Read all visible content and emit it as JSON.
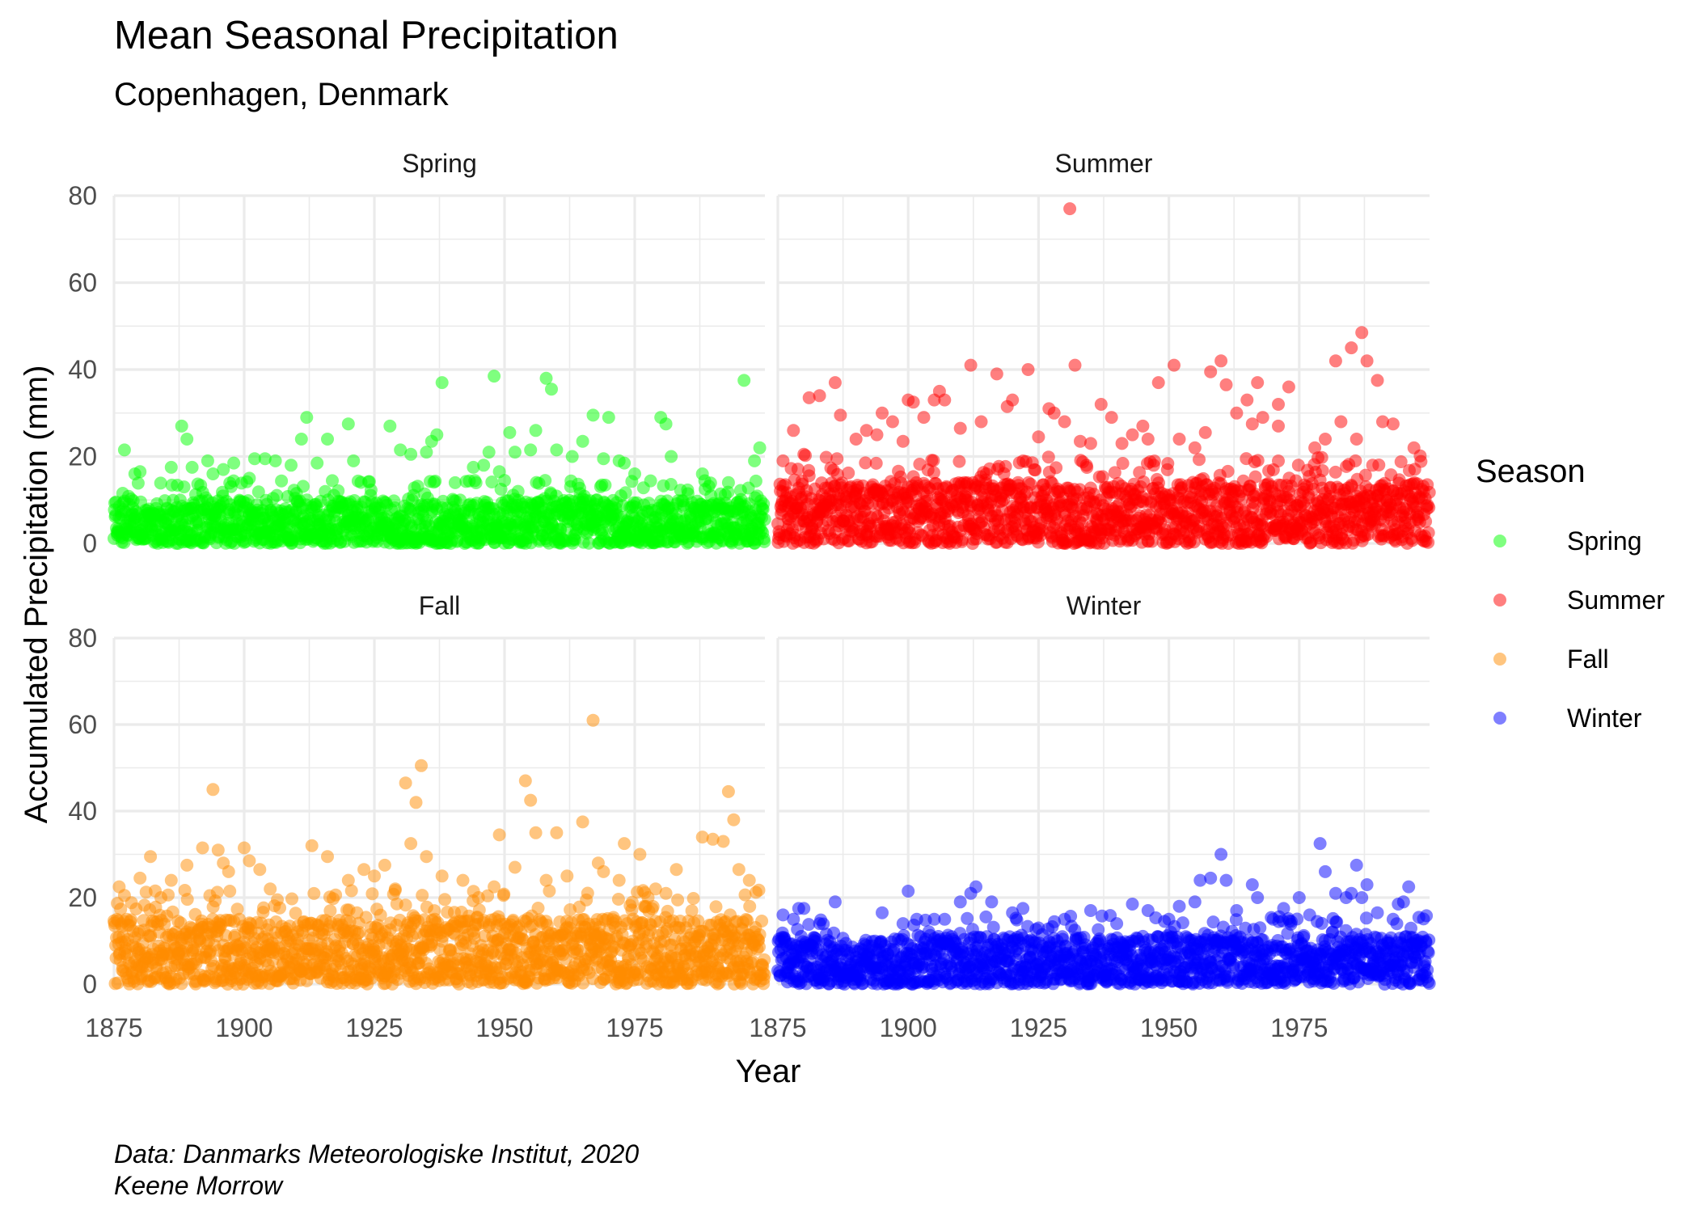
{
  "chart_data": {
    "type": "scatter",
    "title": "Mean Seasonal Precipitation",
    "subtitle": "Copenhagen, Denmark",
    "xlabel": "Year",
    "ylabel": "Accumulated Precipitation (mm)",
    "caption_lines": [
      "Data: Danmarks Meteorologiske Institut, 2020",
      "Keene Morrow"
    ],
    "xlim": [
      1875,
      2000
    ],
    "ylim": [
      0,
      80
    ],
    "x_ticks": [
      1875,
      1900,
      1925,
      1950,
      1975
    ],
    "y_ticks": [
      0,
      20,
      40,
      60,
      80
    ],
    "grid": true,
    "legend": {
      "title": "Season",
      "position": "right"
    },
    "point_alpha": 0.5,
    "series": [
      {
        "name": "Spring",
        "color": "#00ff00",
        "baseline_max": 10,
        "outliers": [
          [
            1877,
            21.5
          ],
          [
            1879,
            16
          ],
          [
            1880,
            16.5
          ],
          [
            1886,
            17.5
          ],
          [
            1888,
            27
          ],
          [
            1889,
            24
          ],
          [
            1890,
            17.5
          ],
          [
            1893,
            19
          ],
          [
            1894,
            16
          ],
          [
            1896,
            17
          ],
          [
            1898,
            18.5
          ],
          [
            1901,
            15
          ],
          [
            1902,
            19.5
          ],
          [
            1904,
            19.5
          ],
          [
            1906,
            19
          ],
          [
            1909,
            18
          ],
          [
            1911,
            24
          ],
          [
            1912,
            29
          ],
          [
            1914,
            18.5
          ],
          [
            1916,
            24
          ],
          [
            1920,
            27.5
          ],
          [
            1921,
            19
          ],
          [
            1928,
            27
          ],
          [
            1930,
            21.5
          ],
          [
            1932,
            20.5
          ],
          [
            1935,
            21
          ],
          [
            1936,
            23.5
          ],
          [
            1937,
            25
          ],
          [
            1938,
            37
          ],
          [
            1944,
            17.5
          ],
          [
            1946,
            18
          ],
          [
            1947,
            21
          ],
          [
            1948,
            38.5
          ],
          [
            1949,
            16.5
          ],
          [
            1950,
            14.5
          ],
          [
            1951,
            25.5
          ],
          [
            1952,
            21
          ],
          [
            1955,
            21.5
          ],
          [
            1956,
            26
          ],
          [
            1958,
            38
          ],
          [
            1959,
            35.5
          ],
          [
            1960,
            21.5
          ],
          [
            1963,
            20
          ],
          [
            1965,
            23.5
          ],
          [
            1967,
            29.5
          ],
          [
            1969,
            19.5
          ],
          [
            1970,
            29
          ],
          [
            1972,
            19
          ],
          [
            1973,
            18.5
          ],
          [
            1975,
            16
          ],
          [
            1980,
            29
          ],
          [
            1981,
            27.5
          ],
          [
            1982,
            20
          ],
          [
            1988,
            16
          ],
          [
            1993,
            14
          ],
          [
            1996,
            37.5
          ],
          [
            1998,
            19
          ],
          [
            1999,
            22
          ]
        ]
      },
      {
        "name": "Summer",
        "color": "#ff0000",
        "baseline_max": 14,
        "outliers": [
          [
            1876,
            19
          ],
          [
            1878,
            26
          ],
          [
            1880,
            20.5
          ],
          [
            1881,
            33.5
          ],
          [
            1883,
            34
          ],
          [
            1886,
            37
          ],
          [
            1887,
            29.5
          ],
          [
            1890,
            24
          ],
          [
            1892,
            26
          ],
          [
            1894,
            25
          ],
          [
            1895,
            30
          ],
          [
            1897,
            28
          ],
          [
            1899,
            23.5
          ],
          [
            1900,
            33
          ],
          [
            1901,
            32.5
          ],
          [
            1903,
            29
          ],
          [
            1905,
            33
          ],
          [
            1906,
            35
          ],
          [
            1907,
            33
          ],
          [
            1910,
            26.5
          ],
          [
            1912,
            41
          ],
          [
            1914,
            28
          ],
          [
            1917,
            39
          ],
          [
            1919,
            31.5
          ],
          [
            1920,
            33
          ],
          [
            1923,
            40
          ],
          [
            1925,
            24.5
          ],
          [
            1927,
            31
          ],
          [
            1928,
            30
          ],
          [
            1930,
            28
          ],
          [
            1931,
            77
          ],
          [
            1932,
            41
          ],
          [
            1933,
            23.5
          ],
          [
            1935,
            23
          ],
          [
            1937,
            32
          ],
          [
            1939,
            29
          ],
          [
            1941,
            23
          ],
          [
            1943,
            25
          ],
          [
            1945,
            27
          ],
          [
            1946,
            24
          ],
          [
            1948,
            37
          ],
          [
            1951,
            41
          ],
          [
            1952,
            24
          ],
          [
            1955,
            22
          ],
          [
            1957,
            25.5
          ],
          [
            1958,
            39.5
          ],
          [
            1960,
            42
          ],
          [
            1961,
            36.5
          ],
          [
            1963,
            30
          ],
          [
            1965,
            33
          ],
          [
            1966,
            27.5
          ],
          [
            1967,
            37
          ],
          [
            1968,
            29
          ],
          [
            1971,
            27
          ],
          [
            1971,
            32
          ],
          [
            1973,
            36
          ],
          [
            1978,
            22
          ],
          [
            1980,
            24
          ],
          [
            1982,
            42
          ],
          [
            1983,
            28
          ],
          [
            1985,
            45
          ],
          [
            1986,
            24
          ],
          [
            1987,
            48.5
          ],
          [
            1988,
            42
          ],
          [
            1990,
            37.5
          ],
          [
            1991,
            28
          ],
          [
            1993,
            27.5
          ],
          [
            1997,
            22
          ]
        ]
      },
      {
        "name": "Fall",
        "color": "#ff8c00",
        "baseline_max": 15,
        "outliers": [
          [
            1876,
            22.5
          ],
          [
            1877,
            20.5
          ],
          [
            1880,
            24.5
          ],
          [
            1882,
            29.5
          ],
          [
            1884,
            20
          ],
          [
            1886,
            24
          ],
          [
            1889,
            27.5
          ],
          [
            1892,
            31.5
          ],
          [
            1894,
            45
          ],
          [
            1895,
            31
          ],
          [
            1896,
            28
          ],
          [
            1897,
            26
          ],
          [
            1900,
            31.5
          ],
          [
            1901,
            28.5
          ],
          [
            1903,
            26.5
          ],
          [
            1905,
            22
          ],
          [
            1913,
            32
          ],
          [
            1916,
            29.5
          ],
          [
            1920,
            24
          ],
          [
            1923,
            26.5
          ],
          [
            1925,
            25
          ],
          [
            1927,
            27.5
          ],
          [
            1929,
            22
          ],
          [
            1931,
            46.5
          ],
          [
            1932,
            32.5
          ],
          [
            1933,
            42
          ],
          [
            1934,
            50.5
          ],
          [
            1935,
            29.5
          ],
          [
            1938,
            25
          ],
          [
            1942,
            24
          ],
          [
            1945,
            20
          ],
          [
            1948,
            22.5
          ],
          [
            1949,
            34.5
          ],
          [
            1952,
            27
          ],
          [
            1954,
            47
          ],
          [
            1955,
            42.5
          ],
          [
            1956,
            35
          ],
          [
            1958,
            24
          ],
          [
            1960,
            35
          ],
          [
            1962,
            25
          ],
          [
            1965,
            37.5
          ],
          [
            1967,
            61
          ],
          [
            1968,
            28
          ],
          [
            1969,
            26
          ],
          [
            1972,
            24
          ],
          [
            1973,
            32.5
          ],
          [
            1976,
            30
          ],
          [
            1979,
            22
          ],
          [
            1981,
            21
          ],
          [
            1983,
            26.5
          ],
          [
            1988,
            34
          ],
          [
            1990,
            33.5
          ],
          [
            1992,
            33
          ],
          [
            1993,
            44.5
          ],
          [
            1994,
            38
          ],
          [
            1995,
            26.5
          ],
          [
            1997,
            24
          ]
        ]
      },
      {
        "name": "Winter",
        "color": "#0000ff",
        "baseline_max": 11,
        "outliers": [
          [
            1876,
            16
          ],
          [
            1878,
            15
          ],
          [
            1879,
            17.5
          ],
          [
            1880,
            17.5
          ],
          [
            1883,
            14
          ],
          [
            1886,
            19
          ],
          [
            1895,
            16.5
          ],
          [
            1899,
            14
          ],
          [
            1900,
            21.5
          ],
          [
            1905,
            15
          ],
          [
            1907,
            15
          ],
          [
            1910,
            19
          ],
          [
            1912,
            21
          ],
          [
            1913,
            22.5
          ],
          [
            1916,
            19
          ],
          [
            1920,
            16.5
          ],
          [
            1922,
            17.5
          ],
          [
            1925,
            13
          ],
          [
            1930,
            15
          ],
          [
            1935,
            17
          ],
          [
            1940,
            14
          ],
          [
            1943,
            18.5
          ],
          [
            1946,
            17
          ],
          [
            1950,
            15
          ],
          [
            1952,
            18
          ],
          [
            1955,
            19
          ],
          [
            1956,
            24
          ],
          [
            1958,
            24.5
          ],
          [
            1960,
            30
          ],
          [
            1961,
            24
          ],
          [
            1963,
            17
          ],
          [
            1966,
            23
          ],
          [
            1967,
            20
          ],
          [
            1970,
            15
          ],
          [
            1972,
            17.5
          ],
          [
            1975,
            20
          ],
          [
            1977,
            16
          ],
          [
            1979,
            32.5
          ],
          [
            1980,
            26
          ],
          [
            1982,
            21
          ],
          [
            1984,
            20
          ],
          [
            1985,
            21
          ],
          [
            1986,
            27.5
          ],
          [
            1987,
            20
          ],
          [
            1988,
            23
          ],
          [
            1990,
            16.5
          ],
          [
            1993,
            15
          ],
          [
            1994,
            18.5
          ],
          [
            1995,
            19
          ],
          [
            1996,
            22.5
          ]
        ]
      }
    ]
  }
}
